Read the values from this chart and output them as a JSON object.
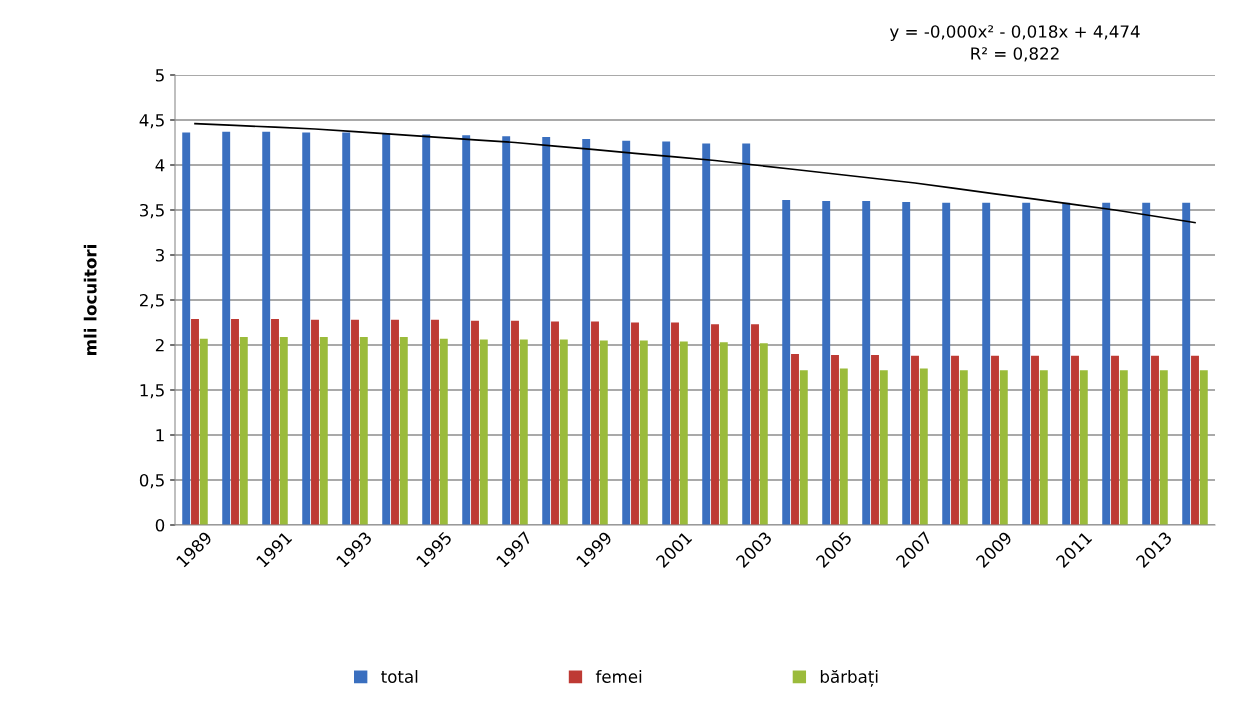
{
  "chart_data": {
    "type": "bar",
    "ylabel": "mli locuitori",
    "categories": [
      "1989",
      null,
      "1991",
      null,
      "1993",
      null,
      "1995",
      null,
      "1997",
      null,
      "1999",
      null,
      "2001",
      null,
      "2003",
      null,
      "2005",
      null,
      "2007",
      null,
      "2009",
      null,
      "2011",
      null,
      "2013",
      null
    ],
    "series": [
      {
        "name": "total",
        "color": "#3a6fbf",
        "values": [
          4.36,
          4.37,
          4.37,
          4.36,
          4.36,
          4.35,
          4.34,
          4.33,
          4.32,
          4.31,
          4.29,
          4.27,
          4.26,
          4.24,
          4.24,
          3.61,
          3.6,
          3.6,
          3.59,
          3.58,
          3.58,
          3.58,
          3.58,
          3.58,
          3.58,
          3.58
        ]
      },
      {
        "name": "femei",
        "color": "#be3a34",
        "values": [
          2.29,
          2.29,
          2.29,
          2.28,
          2.28,
          2.28,
          2.28,
          2.27,
          2.27,
          2.26,
          2.26,
          2.25,
          2.25,
          2.23,
          2.23,
          1.9,
          1.89,
          1.89,
          1.88,
          1.88,
          1.88,
          1.88,
          1.88,
          1.88,
          1.88,
          1.88
        ]
      },
      {
        "name": "bărbați",
        "color": "#9bbb3b",
        "values": [
          2.07,
          2.09,
          2.09,
          2.09,
          2.09,
          2.09,
          2.07,
          2.06,
          2.06,
          2.06,
          2.05,
          2.05,
          2.04,
          2.03,
          2.02,
          1.72,
          1.74,
          1.72,
          1.74,
          1.72,
          1.72,
          1.72,
          1.72,
          1.72,
          1.72,
          1.72
        ]
      },
      {
        "type": "line",
        "color": "#000000",
        "values": [
          4.46,
          4.44,
          4.42,
          4.4,
          4.37,
          4.34,
          4.31,
          4.28,
          4.25,
          4.21,
          4.17,
          4.13,
          4.09,
          4.05,
          4.0,
          3.95,
          3.9,
          3.85,
          3.8,
          3.74,
          3.68,
          3.62,
          3.56,
          3.5,
          3.43,
          3.36
        ]
      }
    ],
    "ylim": [
      0,
      5
    ],
    "yticks": [
      0,
      {
        "value": 0.5,
        "label": "0,5"
      },
      1,
      {
        "value": 1.5,
        "label": "1,5"
      },
      2,
      {
        "value": 2.5,
        "label": "2,5"
      },
      3,
      {
        "value": 3.5,
        "label": "3,5"
      },
      4,
      {
        "value": 4.5,
        "label": "4,5"
      },
      5
    ],
    "grid": "y",
    "legend": "bottom",
    "annotations": [
      "y = -0,000x² - 0,018x + 4,474",
      "R² = 0,822"
    ]
  }
}
